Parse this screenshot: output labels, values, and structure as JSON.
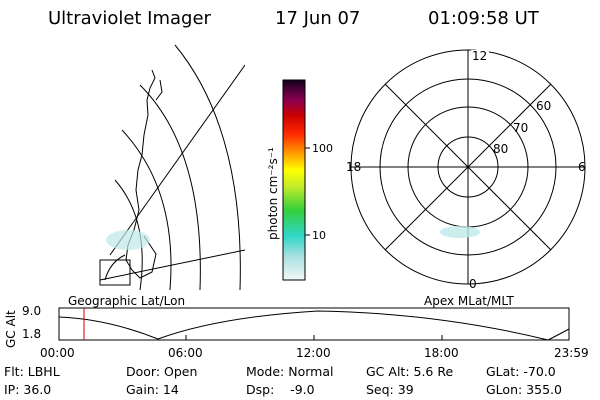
{
  "header": {
    "instrument": "Ultraviolet Imager",
    "date": "17 Jun 07",
    "time": "01:09:58 UT"
  },
  "colors": {
    "foreground": "#000000",
    "background": "#ffffff",
    "time_marker": "#cc0000"
  },
  "geo_panel": {
    "label": "Geographic Lat/Lon"
  },
  "polar_panel": {
    "label": "Apex MLat/MLT",
    "mlt_labels": {
      "top": "12",
      "left": "18",
      "right": "6",
      "bottom": "0"
    },
    "lat_labels": [
      "60",
      "70",
      "80"
    ]
  },
  "colorbar": {
    "units": "photon cm⁻²s⁻¹",
    "ticks": [
      "100",
      "10"
    ],
    "scale": "log"
  },
  "altitude_plot": {
    "ylabel": "GC Alt",
    "y_ticks": [
      "9.0",
      "1.8"
    ],
    "x_ticks": [
      "00:00",
      "06:00",
      "12:00",
      "18:00",
      "23:59"
    ]
  },
  "footer": {
    "filter": "Flt: LBHL",
    "door": "Door: Open",
    "mode": "Mode: Normal",
    "gc_alt": "GC Alt: 5.6 Re",
    "glat": "GLat: -70.0",
    "ip": "IP: 36.0",
    "gain": "Gain: 14",
    "dsp": "Dsp:    -9.0",
    "seq": "Seq: 39",
    "glon": "GLon: 355.0"
  }
}
